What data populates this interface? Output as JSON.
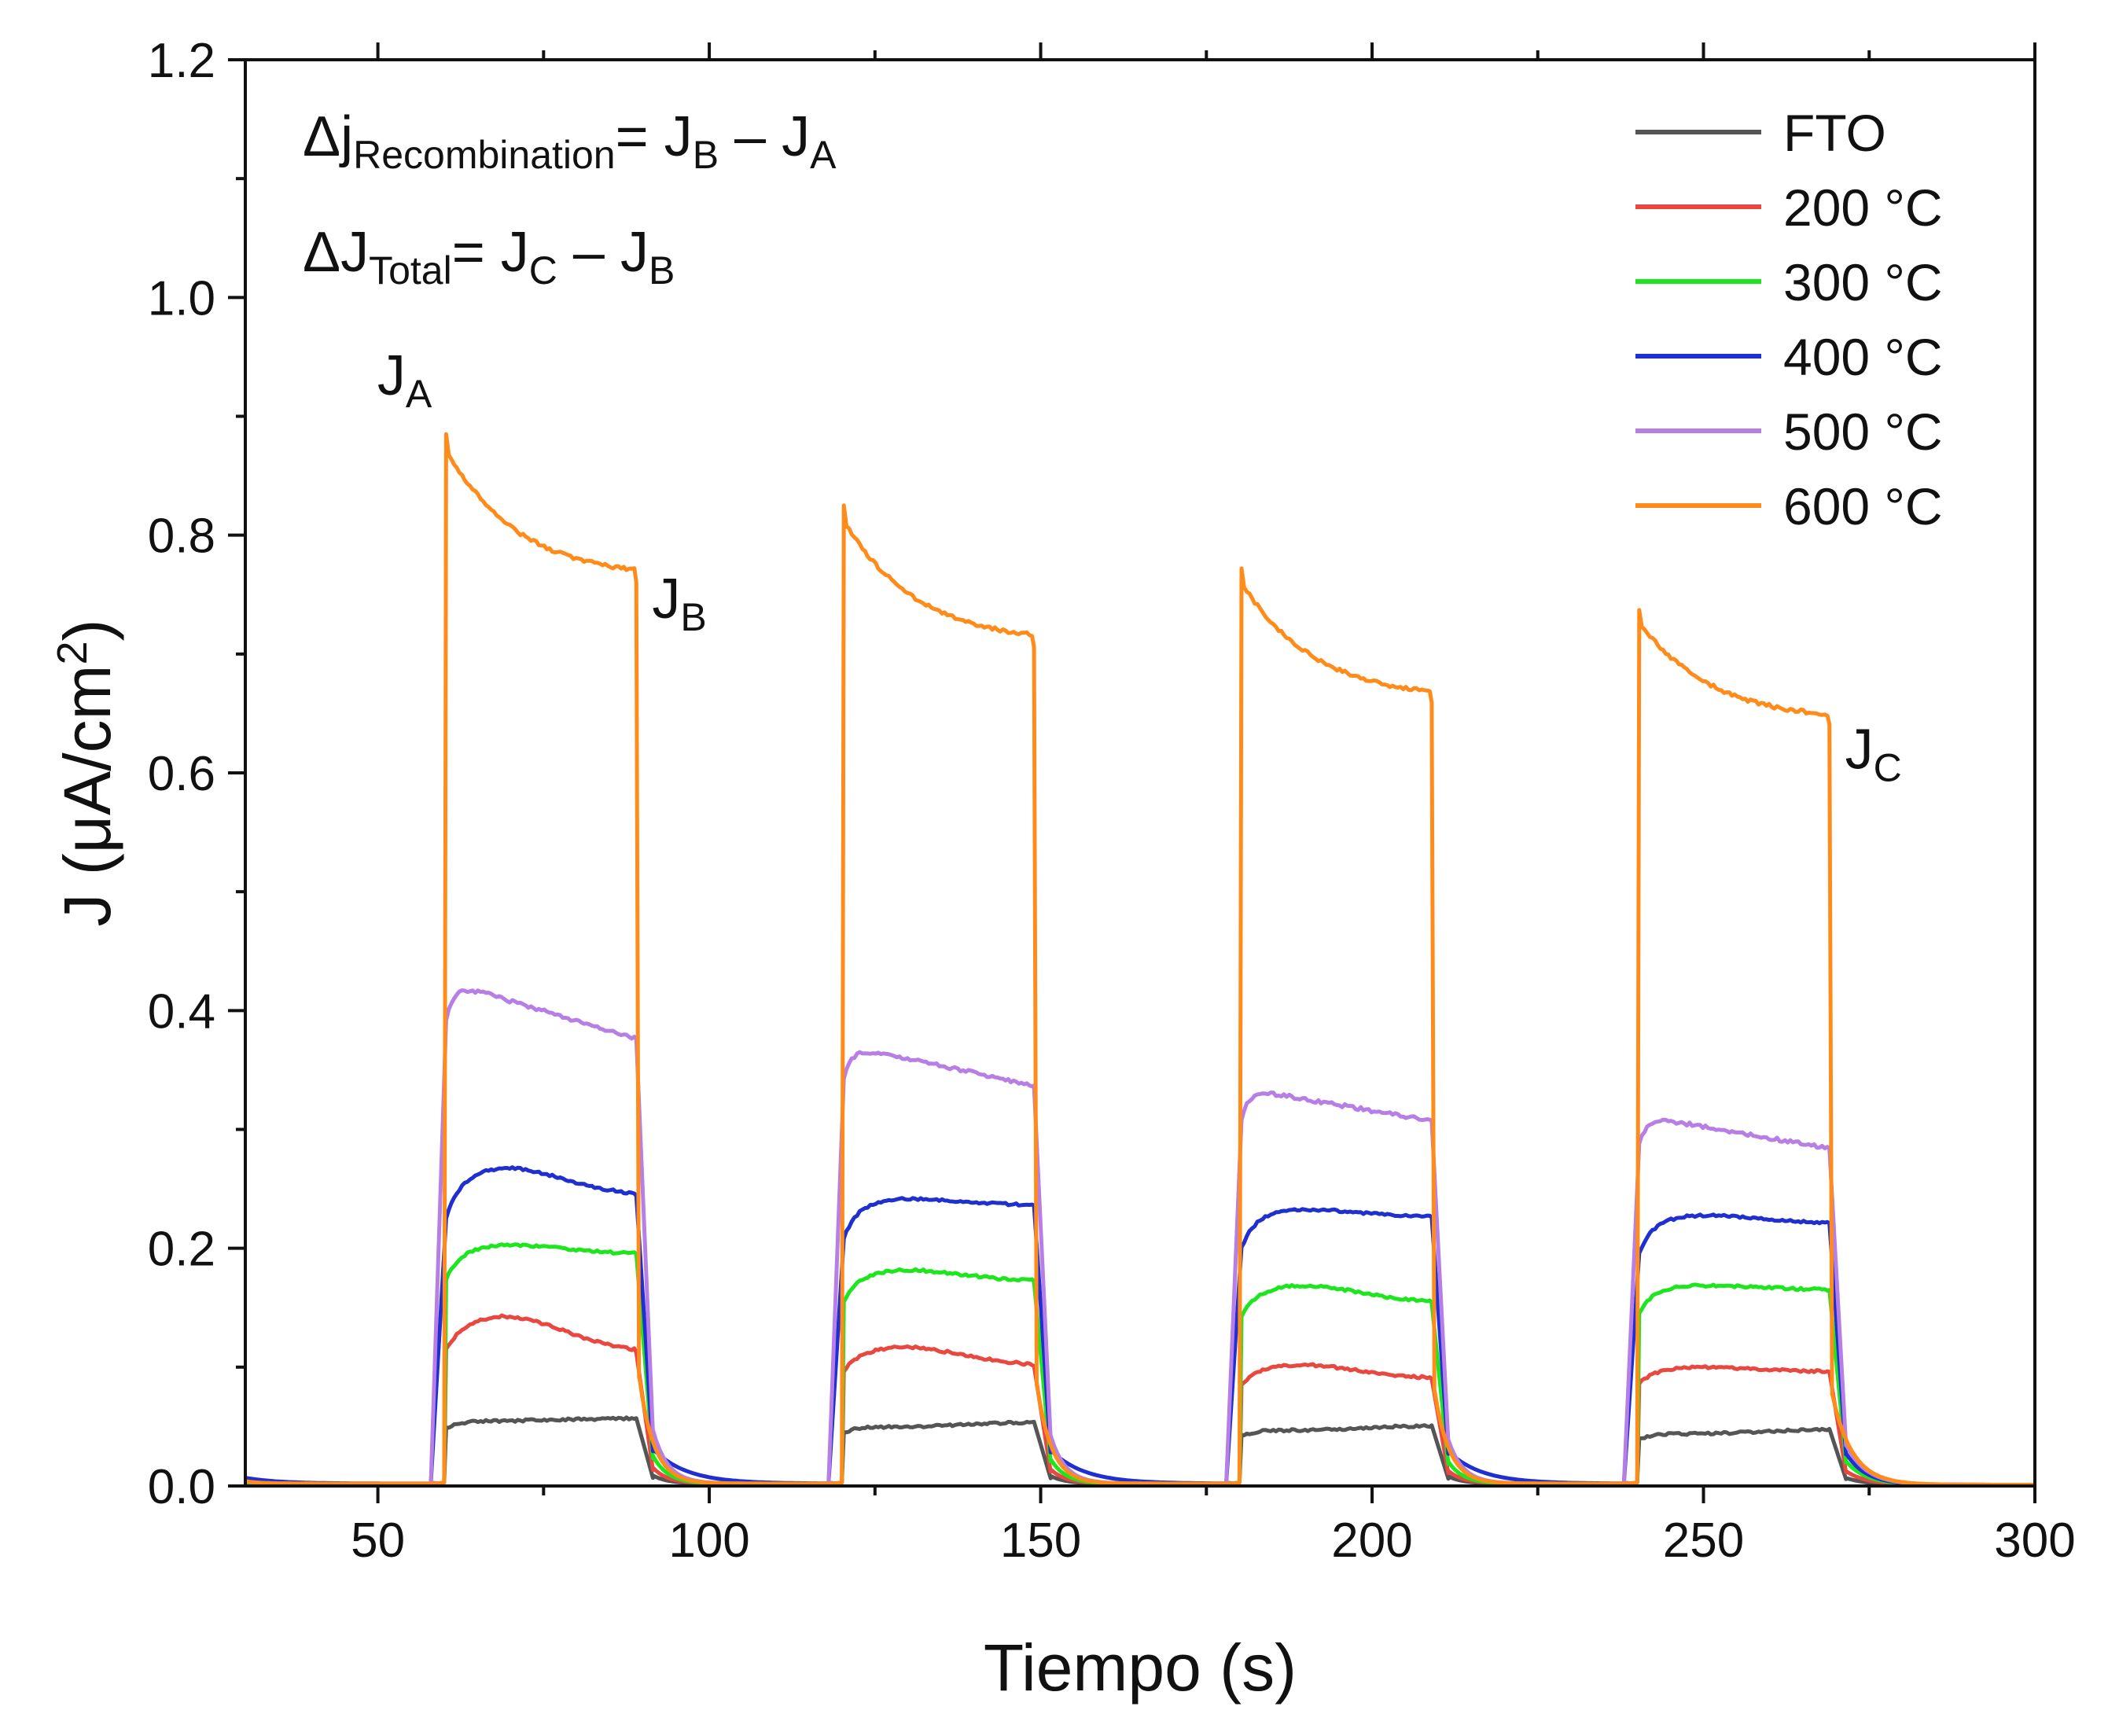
{
  "chart_data": {
    "type": "line",
    "title": "",
    "xlabel": "Tiempo (s)",
    "ylabel": "J (μA/cm²)",
    "ylabel_main": "J (μA/cm",
    "ylabel_sup": "2",
    "ylabel_close": ")",
    "xlim": [
      30,
      300
    ],
    "ylim": [
      0.0,
      1.2
    ],
    "xticks": [
      50,
      100,
      150,
      200,
      250,
      300
    ],
    "yticks": [
      0.0,
      0.2,
      0.4,
      0.6,
      0.8,
      1.0,
      1.2
    ],
    "ytick_labels": [
      "0.0",
      "0.2",
      "0.4",
      "0.6",
      "0.8",
      "1.0",
      "1.2"
    ],
    "legend_position": "top-right",
    "annotations": {
      "recombination": {
        "prefix": "Δj",
        "sub": "Recombination",
        "mid": "= J",
        "sub2": "B",
        "mid2": " – J",
        "sub3": "A"
      },
      "total": {
        "prefix": "ΔJ",
        "sub": "Total",
        "mid": "= J",
        "sub2": "C",
        "mid2": " – J",
        "sub3": "B"
      },
      "point_A": {
        "main": "J",
        "sub": "A",
        "x": 60,
        "y": 0.885
      },
      "point_B": {
        "main": "J",
        "sub": "B",
        "x": 89,
        "y": 0.76
      },
      "point_C": {
        "main": "J",
        "sub": "C",
        "x": 269,
        "y": 0.64
      }
    },
    "light_periods": [
      [
        60,
        89
      ],
      [
        120,
        149
      ],
      [
        180,
        209
      ],
      [
        240,
        269
      ]
    ],
    "series": [
      {
        "name": "FTO",
        "color": "#555555",
        "pulses": [
          {
            "on": 60,
            "off": 89,
            "peak": 0.055,
            "end": 0.057
          },
          {
            "on": 120,
            "off": 149,
            "peak": 0.05,
            "end": 0.054
          },
          {
            "on": 180,
            "off": 209,
            "peak": 0.047,
            "end": 0.051
          },
          {
            "on": 240,
            "off": 269,
            "peak": 0.044,
            "end": 0.048
          }
        ]
      },
      {
        "name": "200 °C",
        "color": "#e8483f",
        "pulses": [
          {
            "on": 60,
            "off": 89,
            "peak": 0.143,
            "end": 0.112
          },
          {
            "on": 120,
            "off": 149,
            "peak": 0.117,
            "end": 0.101
          },
          {
            "on": 180,
            "off": 209,
            "peak": 0.102,
            "end": 0.09
          },
          {
            "on": 240,
            "off": 269,
            "peak": 0.1,
            "end": 0.096
          }
        ]
      },
      {
        "name": "300 °C",
        "color": "#1ee61e",
        "pulses": [
          {
            "on": 60,
            "off": 89,
            "peak": 0.203,
            "end": 0.195
          },
          {
            "on": 120,
            "off": 149,
            "peak": 0.182,
            "end": 0.172
          },
          {
            "on": 180,
            "off": 209,
            "peak": 0.169,
            "end": 0.154
          },
          {
            "on": 240,
            "off": 269,
            "peak": 0.169,
            "end": 0.165
          }
        ]
      },
      {
        "name": "400 °C",
        "color": "#1f2fd0",
        "pulses": [
          {
            "on": 60,
            "off": 89,
            "peak": 0.268,
            "end": 0.244
          },
          {
            "on": 120,
            "off": 149,
            "peak": 0.242,
            "end": 0.236
          },
          {
            "on": 180,
            "off": 209,
            "peak": 0.233,
            "end": 0.226
          },
          {
            "on": 240,
            "off": 269,
            "peak": 0.228,
            "end": 0.221
          }
        ]
      },
      {
        "name": "500 °C",
        "color": "#b77fe6",
        "pulses": [
          {
            "on": 60,
            "off": 89,
            "peak": 0.425,
            "end": 0.376
          },
          {
            "on": 120,
            "off": 149,
            "peak": 0.371,
            "end": 0.337
          },
          {
            "on": 180,
            "off": 209,
            "peak": 0.335,
            "end": 0.307
          },
          {
            "on": 240,
            "off": 269,
            "peak": 0.312,
            "end": 0.284
          }
        ]
      },
      {
        "name": "600 °C",
        "color": "#ff8c1a",
        "pulses": [
          {
            "on": 60,
            "off": 89,
            "peak": 0.885,
            "end": 0.76
          },
          {
            "on": 120,
            "off": 149,
            "peak": 0.825,
            "end": 0.706
          },
          {
            "on": 180,
            "off": 209,
            "peak": 0.772,
            "end": 0.659
          },
          {
            "on": 240,
            "off": 269,
            "peak": 0.737,
            "end": 0.641
          }
        ]
      }
    ]
  }
}
